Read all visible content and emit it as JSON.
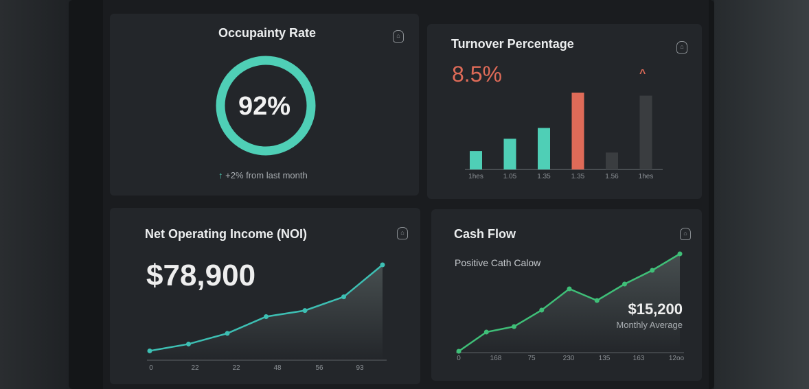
{
  "colors": {
    "teal": "#4fcfb6",
    "red": "#df6b58",
    "green": "#3fbf78",
    "dark_bar": "#3a3d40"
  },
  "occupancy": {
    "title": "Occupainty Rate",
    "value": "92%",
    "percent": 92,
    "change_icon": "arrow-up-icon",
    "change_text": "+2% from last month",
    "icon": "home-icon"
  },
  "turnover": {
    "title": "Turnover Percentage",
    "value": "8.5%",
    "trend_icon": "caret-up-icon",
    "icon": "home-icon"
  },
  "noi": {
    "title": "Net Operating Income (NOI)",
    "value": "$78,900",
    "icon": "home-icon"
  },
  "cashflow": {
    "title": "Cash Flow",
    "subtitle": "Positive Cath Calow",
    "value": "$15,200",
    "value_label": "Monthly Average",
    "icon": "home-icon"
  },
  "chart_data": [
    {
      "type": "bar",
      "categories": [
        "1hes",
        "1.05",
        "1.35",
        "1.35",
        "1.56",
        "1hes"
      ],
      "values": [
        24,
        40,
        54,
        100,
        22,
        96
      ],
      "bar_colors": [
        "#4fcfb6",
        "#4fcfb6",
        "#4fcfb6",
        "#df6b58",
        "#3a3d40",
        "#3a3d40"
      ]
    },
    {
      "type": "line",
      "x_tick_labels": [
        "0",
        "22",
        "22",
        "48",
        "56",
        "93"
      ],
      "values": [
        5,
        14,
        28,
        50,
        58,
        76,
        118
      ]
    },
    {
      "type": "line",
      "x_tick_labels": [
        "0",
        "168",
        "75",
        "230",
        "135",
        "163",
        "12oo"
      ],
      "values": [
        2,
        30,
        38,
        62,
        93,
        76,
        100,
        120,
        144
      ]
    }
  ]
}
